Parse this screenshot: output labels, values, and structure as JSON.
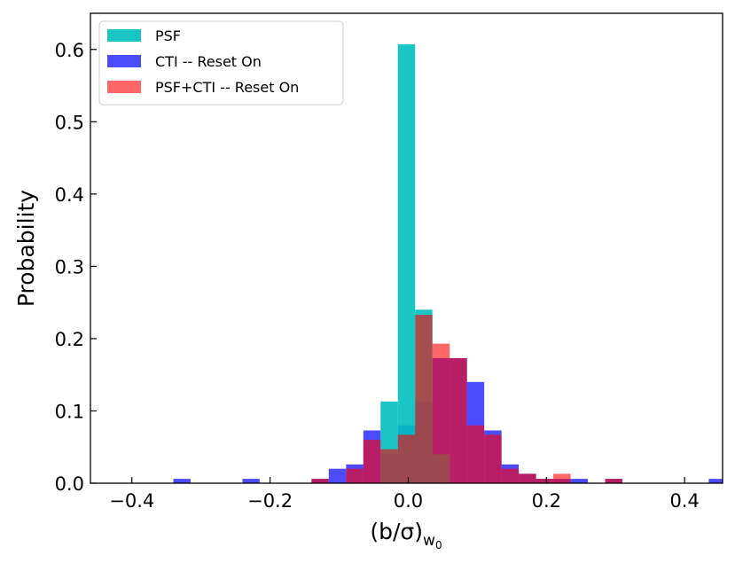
{
  "chart_data": {
    "type": "bar",
    "title": "",
    "xlabel": "(b/σ)",
    "xlabel_sub": "w",
    "xlabel_subsub": "0",
    "ylabel": "Probability",
    "xlim": [
      -0.46,
      0.455
    ],
    "ylim": [
      0.0,
      0.65
    ],
    "xticks": [
      -0.4,
      -0.2,
      0.0,
      0.2,
      0.4
    ],
    "xtick_labels": [
      "−0.4",
      "−0.2",
      "0.0",
      "0.2",
      "0.4"
    ],
    "yticks": [
      0.0,
      0.1,
      0.2,
      0.3,
      0.4,
      0.5,
      0.6
    ],
    "ytick_labels": [
      "0.0",
      "0.1",
      "0.2",
      "0.3",
      "0.4",
      "0.5",
      "0.6"
    ],
    "legend_position": "top-left",
    "series": [
      {
        "name": "CTI -- Reset On",
        "color": "#0000ff",
        "opacity": 0.7,
        "bins": [
          {
            "x0": -0.34,
            "x1": -0.315,
            "y": 0.006
          },
          {
            "x0": -0.24,
            "x1": -0.215,
            "y": 0.006
          },
          {
            "x0": -0.14,
            "x1": -0.115,
            "y": 0.006
          },
          {
            "x0": -0.115,
            "x1": -0.09,
            "y": 0.02
          },
          {
            "x0": -0.09,
            "x1": -0.065,
            "y": 0.026
          },
          {
            "x0": -0.065,
            "x1": -0.04,
            "y": 0.073
          },
          {
            "x0": -0.04,
            "x1": -0.015,
            "y": 0.04
          },
          {
            "x0": -0.015,
            "x1": 0.01,
            "y": 0.08
          },
          {
            "x0": 0.01,
            "x1": 0.035,
            "y": 0.113
          },
          {
            "x0": 0.035,
            "x1": 0.06,
            "y": 0.173
          },
          {
            "x0": 0.06,
            "x1": 0.085,
            "y": 0.173
          },
          {
            "x0": 0.085,
            "x1": 0.11,
            "y": 0.14
          },
          {
            "x0": 0.11,
            "x1": 0.135,
            "y": 0.073
          },
          {
            "x0": 0.135,
            "x1": 0.16,
            "y": 0.026
          },
          {
            "x0": 0.16,
            "x1": 0.185,
            "y": 0.013
          },
          {
            "x0": 0.185,
            "x1": 0.21,
            "y": 0.006
          },
          {
            "x0": 0.21,
            "x1": 0.235,
            "y": 0.006
          },
          {
            "x0": 0.235,
            "x1": 0.26,
            "y": 0.006
          },
          {
            "x0": 0.285,
            "x1": 0.31,
            "y": 0.006
          },
          {
            "x0": 0.435,
            "x1": 0.46,
            "y": 0.006
          }
        ]
      },
      {
        "name": "PSF",
        "color": "#00bfbf",
        "opacity": 0.9,
        "bins": [
          {
            "x0": -0.04,
            "x1": -0.015,
            "y": 0.113
          },
          {
            "x0": -0.015,
            "x1": 0.01,
            "y": 0.607
          },
          {
            "x0": 0.01,
            "x1": 0.035,
            "y": 0.24
          },
          {
            "x0": 0.035,
            "x1": 0.06,
            "y": 0.04
          }
        ]
      },
      {
        "name": "PSF+CTI -- Reset On",
        "color": "#ff0000",
        "opacity": 0.6,
        "bins": [
          {
            "x0": -0.14,
            "x1": -0.115,
            "y": 0.006
          },
          {
            "x0": -0.09,
            "x1": -0.065,
            "y": 0.02
          },
          {
            "x0": -0.065,
            "x1": -0.04,
            "y": 0.06
          },
          {
            "x0": -0.04,
            "x1": -0.015,
            "y": 0.047
          },
          {
            "x0": -0.015,
            "x1": 0.01,
            "y": 0.067
          },
          {
            "x0": 0.01,
            "x1": 0.035,
            "y": 0.233
          },
          {
            "x0": 0.035,
            "x1": 0.06,
            "y": 0.193
          },
          {
            "x0": 0.06,
            "x1": 0.085,
            "y": 0.173
          },
          {
            "x0": 0.085,
            "x1": 0.11,
            "y": 0.08
          },
          {
            "x0": 0.11,
            "x1": 0.135,
            "y": 0.067
          },
          {
            "x0": 0.135,
            "x1": 0.16,
            "y": 0.02
          },
          {
            "x0": 0.16,
            "x1": 0.185,
            "y": 0.013
          },
          {
            "x0": 0.185,
            "x1": 0.21,
            "y": 0.006
          },
          {
            "x0": 0.21,
            "x1": 0.235,
            "y": 0.013
          },
          {
            "x0": 0.285,
            "x1": 0.31,
            "y": 0.006
          }
        ]
      }
    ],
    "legend": [
      {
        "label": "PSF",
        "color": "#00bfbf",
        "opacity": 0.9
      },
      {
        "label": "CTI -- Reset On",
        "color": "#0000ff",
        "opacity": 0.7
      },
      {
        "label": "PSF+CTI -- Reset On",
        "color": "#ff0000",
        "opacity": 0.6
      }
    ]
  }
}
